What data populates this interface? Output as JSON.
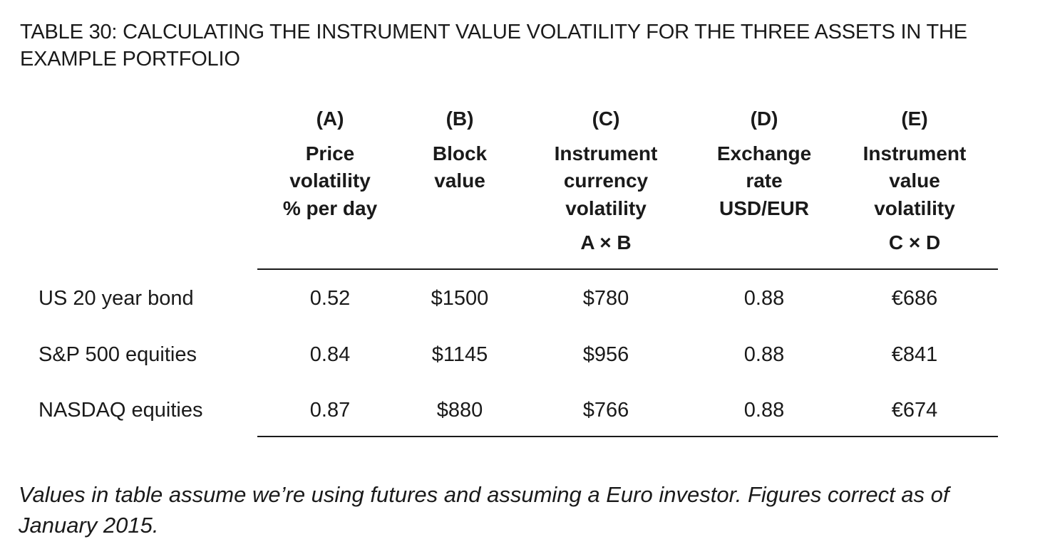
{
  "title": "TABLE 30: CALCULATING THE INSTRUMENT VALUE VOLATILITY FOR THE THREE ASSETS IN THE EXAMPLE PORTFOLIO",
  "columns": [
    {
      "letter": "(A)",
      "desc": "Price\nvolatility\n% per day",
      "formula": ""
    },
    {
      "letter": "(B)",
      "desc": "Block\nvalue",
      "formula": ""
    },
    {
      "letter": "(C)",
      "desc": "Instrument\ncurrency\nvolatility",
      "formula": "A × B"
    },
    {
      "letter": "(D)",
      "desc": "Exchange\nrate\nUSD/EUR",
      "formula": ""
    },
    {
      "letter": "(E)",
      "desc": "Instrument\nvalue\nvolatility",
      "formula": "C × D"
    }
  ],
  "rows": [
    {
      "label": "US 20 year bond",
      "values": [
        "0.52",
        "$1500",
        "$780",
        "0.88",
        "€686"
      ]
    },
    {
      "label": "S&P 500 equities",
      "values": [
        "0.84",
        "$1145",
        "$956",
        "0.88",
        "€841"
      ]
    },
    {
      "label": "NASDAQ equities",
      "values": [
        "0.87",
        "$880",
        "$766",
        "0.88",
        "€674"
      ]
    }
  ],
  "note": "Values in table assume we’re using futures and assuming a Euro investor. Figures correct as of January 2015."
}
